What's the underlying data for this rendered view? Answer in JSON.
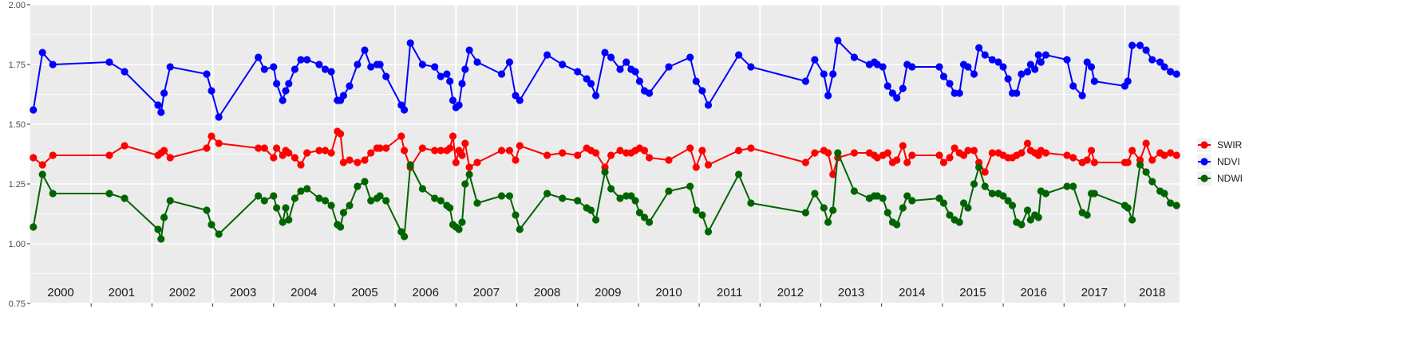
{
  "chart_data": {
    "type": "line",
    "title": "",
    "xlabel": "",
    "ylabel": "",
    "xlim": [
      2000.0,
      2018.9
    ],
    "ylim": [
      0.75,
      2.0
    ],
    "y_ticks": [
      {
        "value": 0.75,
        "label": "0.75"
      },
      {
        "value": 1.0,
        "label": "1.00"
      },
      {
        "value": 1.25,
        "label": "1.25"
      },
      {
        "value": 1.5,
        "label": "1.50"
      },
      {
        "value": 1.75,
        "label": "1.75"
      },
      {
        "value": 2.0,
        "label": "2.00"
      }
    ],
    "year_bands": [
      {
        "label": "2000",
        "start": 2000.0
      },
      {
        "label": "2001",
        "start": 2001.0
      },
      {
        "label": "2002",
        "start": 2002.0
      },
      {
        "label": "2003",
        "start": 2003.0
      },
      {
        "label": "2004",
        "start": 2004.0
      },
      {
        "label": "2005",
        "start": 2005.0
      },
      {
        "label": "2006",
        "start": 2006.0
      },
      {
        "label": "2007",
        "start": 2007.0
      },
      {
        "label": "2008",
        "start": 2008.0
      },
      {
        "label": "2009",
        "start": 2009.0
      },
      {
        "label": "2010",
        "start": 2010.0
      },
      {
        "label": "2011",
        "start": 2011.0
      },
      {
        "label": "2012",
        "start": 2012.0
      },
      {
        "label": "2013",
        "start": 2013.0
      },
      {
        "label": "2014",
        "start": 2014.0
      },
      {
        "label": "2015",
        "start": 2015.0
      },
      {
        "label": "2016",
        "start": 2016.0
      },
      {
        "label": "2017",
        "start": 2017.0
      },
      {
        "label": "2018",
        "start": 2018.0
      }
    ],
    "x_end": 2018.9,
    "grid": true,
    "legend_position": "right",
    "series": [
      {
        "name": "SWIR",
        "color": "#ff0000",
        "x": [
          2000.05,
          2000.2,
          2000.37,
          2001.3,
          2001.55,
          2002.1,
          2002.15,
          2002.2,
          2002.3,
          2002.9,
          2002.98,
          2003.1,
          2003.75,
          2003.85,
          2004.0,
          2004.05,
          2004.15,
          2004.2,
          2004.25,
          2004.35,
          2004.45,
          2004.55,
          2004.75,
          2004.85,
          2004.95,
          2005.05,
          2005.1,
          2005.15,
          2005.25,
          2005.38,
          2005.5,
          2005.6,
          2005.7,
          2005.75,
          2005.85,
          2006.1,
          2006.15,
          2006.25,
          2006.45,
          2006.65,
          2006.75,
          2006.85,
          2006.9,
          2006.95,
          2007.0,
          2007.05,
          2007.1,
          2007.15,
          2007.22,
          2007.35,
          2007.75,
          2007.88,
          2007.98,
          2008.05,
          2008.5,
          2008.75,
          2009.0,
          2009.15,
          2009.22,
          2009.3,
          2009.45,
          2009.55,
          2009.7,
          2009.8,
          2009.88,
          2009.95,
          2010.02,
          2010.1,
          2010.18,
          2010.5,
          2010.85,
          2010.95,
          2011.05,
          2011.15,
          2011.65,
          2011.85,
          2012.75,
          2012.9,
          2013.05,
          2013.12,
          2013.2,
          2013.28,
          2013.55,
          2013.8,
          2013.88,
          2013.93,
          2014.02,
          2014.1,
          2014.18,
          2014.25,
          2014.35,
          2014.42,
          2014.5,
          2014.95,
          2015.02,
          2015.12,
          2015.2,
          2015.28,
          2015.35,
          2015.42,
          2015.52,
          2015.6,
          2015.7,
          2015.82,
          2015.92,
          2016.0,
          2016.08,
          2016.15,
          2016.22,
          2016.3,
          2016.4,
          2016.45,
          2016.52,
          2016.58,
          2016.62,
          2016.7,
          2017.05,
          2017.15,
          2017.3,
          2017.38,
          2017.45,
          2017.5,
          2018.0,
          2018.05,
          2018.12,
          2018.25,
          2018.35,
          2018.45,
          2018.58,
          2018.65,
          2018.75,
          2018.85
        ],
        "values": [
          1.36,
          1.33,
          1.37,
          1.37,
          1.41,
          1.37,
          1.38,
          1.39,
          1.36,
          1.4,
          1.45,
          1.42,
          1.4,
          1.4,
          1.36,
          1.4,
          1.37,
          1.39,
          1.38,
          1.36,
          1.33,
          1.38,
          1.39,
          1.39,
          1.38,
          1.47,
          1.46,
          1.34,
          1.35,
          1.34,
          1.35,
          1.38,
          1.4,
          1.4,
          1.4,
          1.45,
          1.39,
          1.32,
          1.4,
          1.39,
          1.39,
          1.39,
          1.4,
          1.45,
          1.34,
          1.39,
          1.37,
          1.42,
          1.32,
          1.34,
          1.39,
          1.39,
          1.35,
          1.41,
          1.37,
          1.38,
          1.37,
          1.4,
          1.39,
          1.38,
          1.32,
          1.37,
          1.39,
          1.38,
          1.38,
          1.39,
          1.4,
          1.39,
          1.36,
          1.35,
          1.4,
          1.32,
          1.39,
          1.33,
          1.39,
          1.4,
          1.34,
          1.38,
          1.39,
          1.38,
          1.29,
          1.36,
          1.38,
          1.38,
          1.37,
          1.36,
          1.37,
          1.38,
          1.34,
          1.35,
          1.41,
          1.34,
          1.37,
          1.37,
          1.34,
          1.36,
          1.4,
          1.38,
          1.37,
          1.39,
          1.39,
          1.34,
          1.3,
          1.38,
          1.38,
          1.37,
          1.36,
          1.36,
          1.37,
          1.38,
          1.42,
          1.39,
          1.38,
          1.37,
          1.39,
          1.38,
          1.37,
          1.36,
          1.34,
          1.35,
          1.39,
          1.34,
          1.34,
          1.34,
          1.39,
          1.35,
          1.42,
          1.35,
          1.38,
          1.37,
          1.38,
          1.37
        ]
      },
      {
        "name": "NDVI",
        "color": "#0000ff",
        "x": [
          2000.05,
          2000.2,
          2000.37,
          2001.3,
          2001.55,
          2002.1,
          2002.15,
          2002.2,
          2002.3,
          2002.9,
          2002.98,
          2003.1,
          2003.75,
          2003.85,
          2004.0,
          2004.05,
          2004.15,
          2004.2,
          2004.25,
          2004.35,
          2004.45,
          2004.55,
          2004.75,
          2004.85,
          2004.95,
          2005.05,
          2005.1,
          2005.15,
          2005.25,
          2005.38,
          2005.5,
          2005.6,
          2005.7,
          2005.75,
          2005.85,
          2006.1,
          2006.15,
          2006.25,
          2006.45,
          2006.65,
          2006.75,
          2006.85,
          2006.9,
          2006.95,
          2007.0,
          2007.05,
          2007.1,
          2007.15,
          2007.22,
          2007.35,
          2007.75,
          2007.88,
          2007.98,
          2008.05,
          2008.5,
          2008.75,
          2009.0,
          2009.15,
          2009.22,
          2009.3,
          2009.45,
          2009.55,
          2009.7,
          2009.8,
          2009.88,
          2009.95,
          2010.02,
          2010.1,
          2010.18,
          2010.5,
          2010.85,
          2010.95,
          2011.05,
          2011.15,
          2011.65,
          2011.85,
          2012.75,
          2012.9,
          2013.05,
          2013.12,
          2013.2,
          2013.28,
          2013.55,
          2013.8,
          2013.88,
          2013.93,
          2014.02,
          2014.1,
          2014.18,
          2014.25,
          2014.35,
          2014.42,
          2014.5,
          2014.95,
          2015.02,
          2015.12,
          2015.2,
          2015.28,
          2015.35,
          2015.42,
          2015.52,
          2015.6,
          2015.7,
          2015.82,
          2015.92,
          2016.0,
          2016.08,
          2016.15,
          2016.22,
          2016.3,
          2016.4,
          2016.45,
          2016.52,
          2016.58,
          2016.62,
          2016.7,
          2017.05,
          2017.15,
          2017.3,
          2017.38,
          2017.45,
          2017.5,
          2018.0,
          2018.05,
          2018.12,
          2018.25,
          2018.35,
          2018.45,
          2018.58,
          2018.65,
          2018.75,
          2018.85
        ],
        "values": [
          1.56,
          1.8,
          1.75,
          1.76,
          1.72,
          1.58,
          1.55,
          1.63,
          1.74,
          1.71,
          1.64,
          1.53,
          1.78,
          1.73,
          1.74,
          1.67,
          1.6,
          1.64,
          1.67,
          1.73,
          1.77,
          1.77,
          1.75,
          1.73,
          1.72,
          1.6,
          1.6,
          1.62,
          1.66,
          1.75,
          1.81,
          1.74,
          1.75,
          1.75,
          1.7,
          1.58,
          1.56,
          1.84,
          1.75,
          1.74,
          1.7,
          1.71,
          1.68,
          1.6,
          1.57,
          1.58,
          1.67,
          1.73,
          1.81,
          1.76,
          1.71,
          1.76,
          1.62,
          1.6,
          1.79,
          1.75,
          1.72,
          1.69,
          1.67,
          1.62,
          1.8,
          1.78,
          1.73,
          1.76,
          1.73,
          1.72,
          1.68,
          1.64,
          1.63,
          1.74,
          1.78,
          1.68,
          1.64,
          1.58,
          1.79,
          1.74,
          1.68,
          1.77,
          1.71,
          1.62,
          1.71,
          1.85,
          1.78,
          1.75,
          1.76,
          1.75,
          1.74,
          1.66,
          1.63,
          1.61,
          1.65,
          1.75,
          1.74,
          1.74,
          1.7,
          1.67,
          1.63,
          1.63,
          1.75,
          1.74,
          1.71,
          1.82,
          1.79,
          1.77,
          1.76,
          1.74,
          1.69,
          1.63,
          1.63,
          1.71,
          1.72,
          1.75,
          1.73,
          1.79,
          1.76,
          1.79,
          1.77,
          1.66,
          1.62,
          1.76,
          1.74,
          1.68,
          1.66,
          1.68,
          1.83,
          1.83,
          1.81,
          1.77,
          1.76,
          1.74,
          1.72,
          1.71
        ]
      },
      {
        "name": "NDWI",
        "color": "#006400",
        "x": [
          2000.05,
          2000.2,
          2000.37,
          2001.3,
          2001.55,
          2002.1,
          2002.15,
          2002.2,
          2002.3,
          2002.9,
          2002.98,
          2003.1,
          2003.75,
          2003.85,
          2004.0,
          2004.05,
          2004.15,
          2004.2,
          2004.25,
          2004.35,
          2004.45,
          2004.55,
          2004.75,
          2004.85,
          2004.95,
          2005.05,
          2005.1,
          2005.15,
          2005.25,
          2005.38,
          2005.5,
          2005.6,
          2005.7,
          2005.75,
          2005.85,
          2006.1,
          2006.15,
          2006.25,
          2006.45,
          2006.65,
          2006.75,
          2006.85,
          2006.9,
          2006.95,
          2007.0,
          2007.05,
          2007.1,
          2007.15,
          2007.22,
          2007.35,
          2007.75,
          2007.88,
          2007.98,
          2008.05,
          2008.5,
          2008.75,
          2009.0,
          2009.15,
          2009.22,
          2009.3,
          2009.45,
          2009.55,
          2009.7,
          2009.8,
          2009.88,
          2009.95,
          2010.02,
          2010.1,
          2010.18,
          2010.5,
          2010.85,
          2010.95,
          2011.05,
          2011.15,
          2011.65,
          2011.85,
          2012.75,
          2012.9,
          2013.05,
          2013.12,
          2013.2,
          2013.28,
          2013.55,
          2013.8,
          2013.88,
          2013.93,
          2014.02,
          2014.1,
          2014.18,
          2014.25,
          2014.35,
          2014.42,
          2014.5,
          2014.95,
          2015.02,
          2015.12,
          2015.2,
          2015.28,
          2015.35,
          2015.42,
          2015.52,
          2015.6,
          2015.7,
          2015.82,
          2015.92,
          2016.0,
          2016.08,
          2016.15,
          2016.22,
          2016.3,
          2016.4,
          2016.45,
          2016.52,
          2016.58,
          2016.62,
          2016.7,
          2017.05,
          2017.15,
          2017.3,
          2017.38,
          2017.45,
          2017.5,
          2018.0,
          2018.05,
          2018.12,
          2018.25,
          2018.35,
          2018.45,
          2018.58,
          2018.65,
          2018.75,
          2018.85
        ],
        "values": [
          1.07,
          1.29,
          1.21,
          1.21,
          1.19,
          1.06,
          1.02,
          1.11,
          1.18,
          1.14,
          1.08,
          1.04,
          1.2,
          1.18,
          1.2,
          1.15,
          1.09,
          1.15,
          1.1,
          1.19,
          1.22,
          1.23,
          1.19,
          1.18,
          1.16,
          1.08,
          1.07,
          1.13,
          1.16,
          1.24,
          1.26,
          1.18,
          1.19,
          1.2,
          1.18,
          1.05,
          1.03,
          1.33,
          1.23,
          1.19,
          1.18,
          1.16,
          1.15,
          1.08,
          1.07,
          1.06,
          1.09,
          1.25,
          1.29,
          1.17,
          1.2,
          1.2,
          1.12,
          1.06,
          1.21,
          1.19,
          1.18,
          1.15,
          1.14,
          1.1,
          1.3,
          1.23,
          1.19,
          1.2,
          1.2,
          1.18,
          1.13,
          1.11,
          1.09,
          1.22,
          1.24,
          1.14,
          1.12,
          1.05,
          1.29,
          1.17,
          1.13,
          1.21,
          1.15,
          1.09,
          1.14,
          1.38,
          1.22,
          1.19,
          1.2,
          1.2,
          1.19,
          1.13,
          1.09,
          1.08,
          1.15,
          1.2,
          1.18,
          1.19,
          1.17,
          1.12,
          1.1,
          1.09,
          1.17,
          1.15,
          1.25,
          1.32,
          1.24,
          1.21,
          1.21,
          1.2,
          1.18,
          1.16,
          1.09,
          1.08,
          1.14,
          1.1,
          1.12,
          1.11,
          1.22,
          1.21,
          1.24,
          1.24,
          1.13,
          1.12,
          1.21,
          1.21,
          1.16,
          1.15,
          1.1,
          1.33,
          1.3,
          1.26,
          1.22,
          1.21,
          1.17,
          1.16
        ]
      }
    ]
  }
}
